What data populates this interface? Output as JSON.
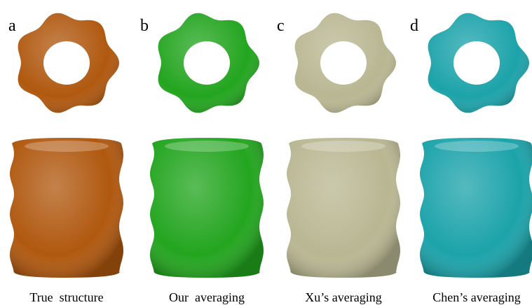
{
  "panels": [
    {
      "letter": "a",
      "caption": "True  structure"
    },
    {
      "letter": "b",
      "caption": "Our  averaging"
    },
    {
      "letter": "c",
      "caption": "Xu’s averaging"
    },
    {
      "letter": "d",
      "caption": "Chen’s averaging"
    }
  ]
}
